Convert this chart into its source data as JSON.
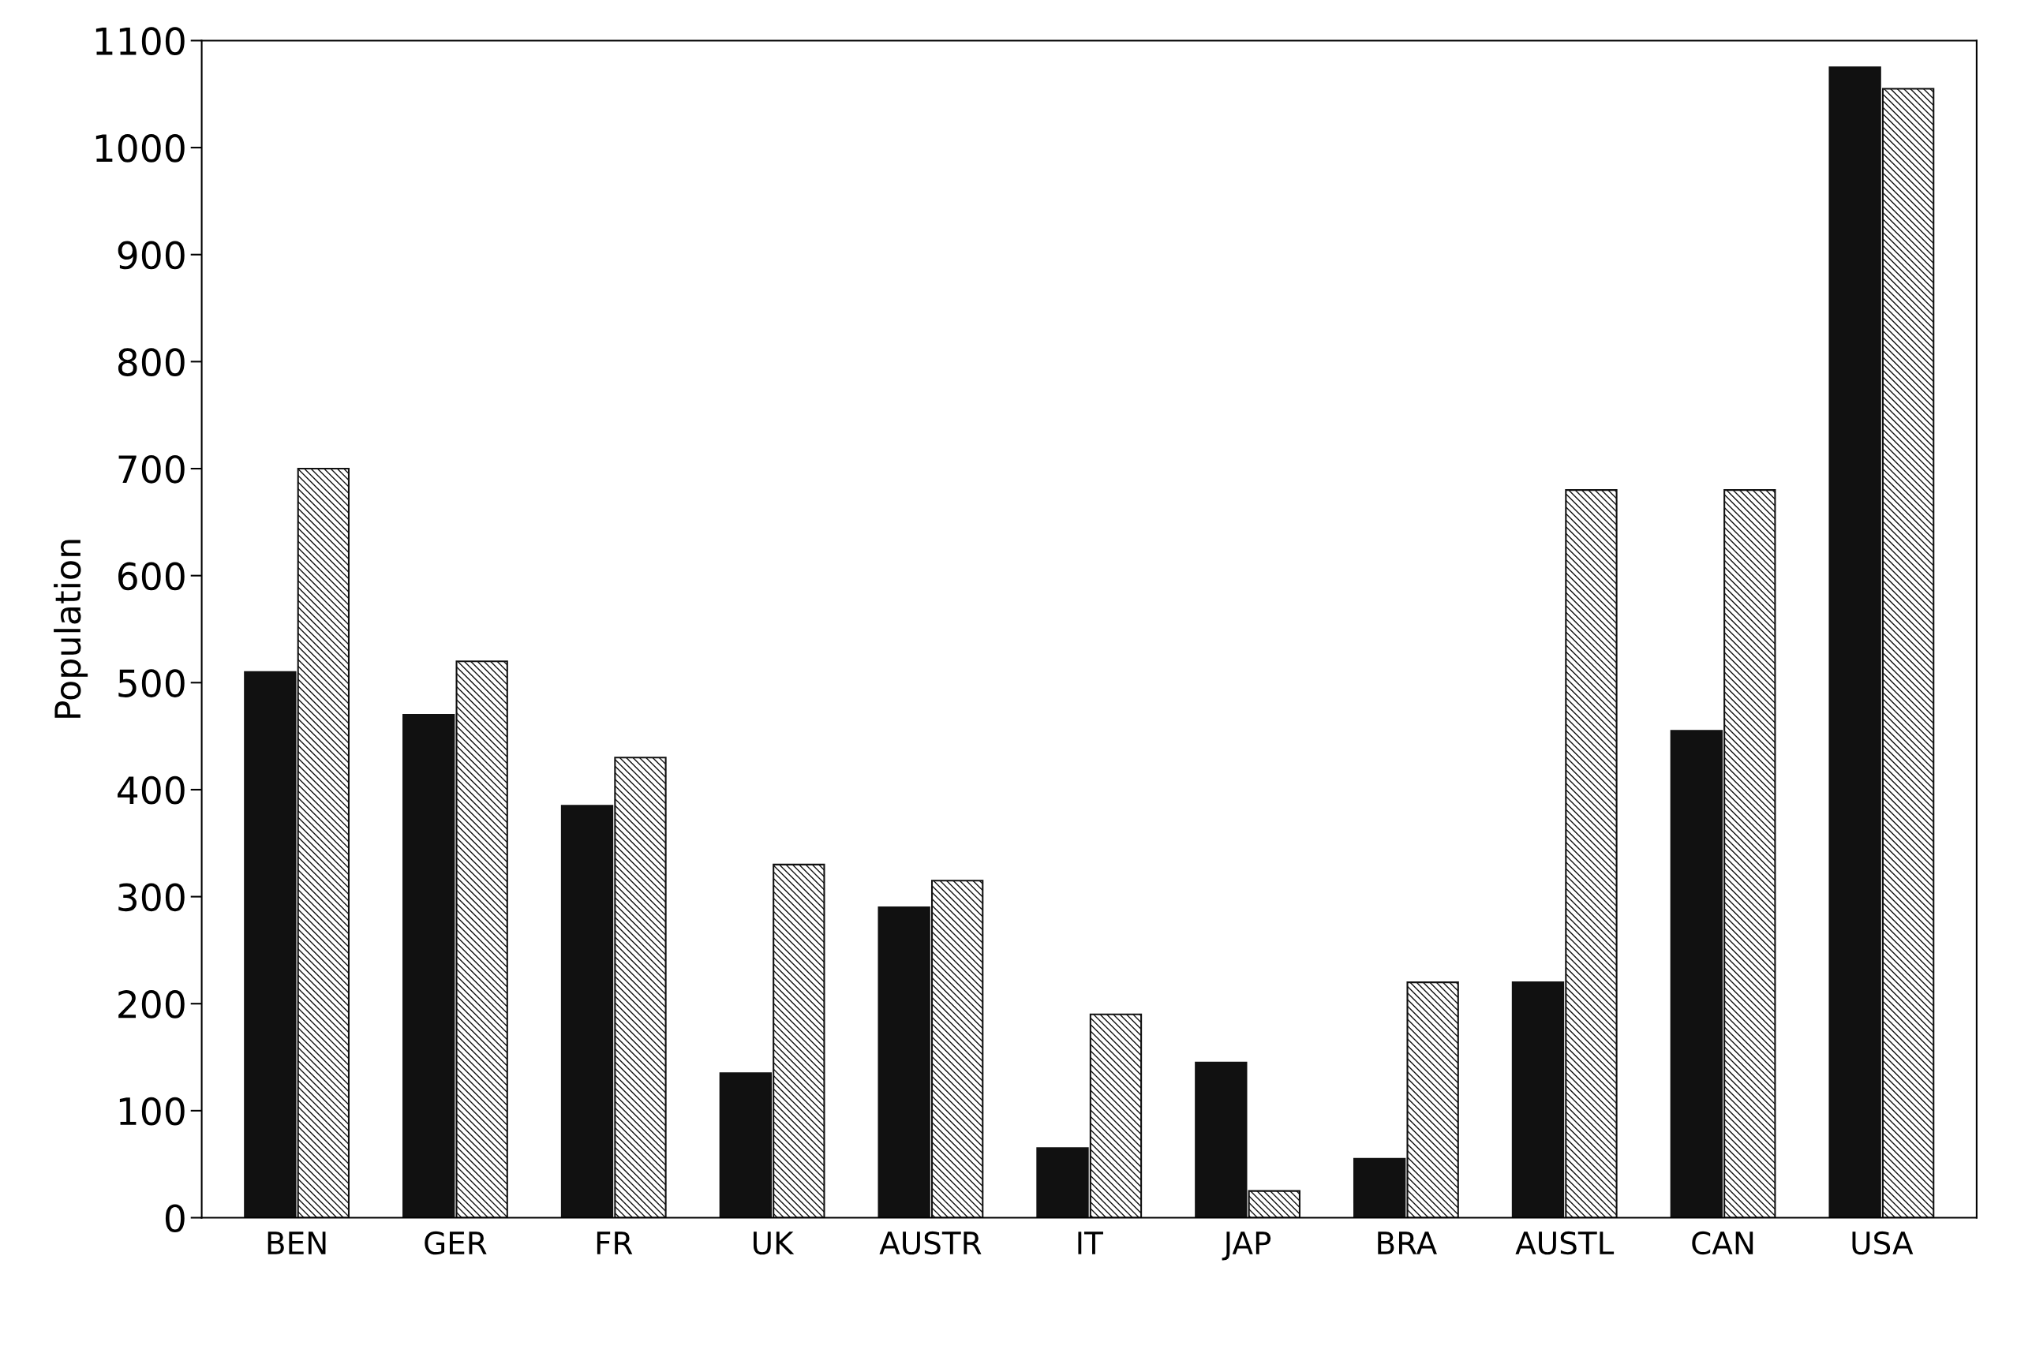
{
  "chart_data": {
    "type": "bar",
    "ylabel": "Population",
    "categories": [
      "BEN",
      "GER",
      "FR",
      "UK",
      "AUSTR",
      "IT",
      "JAP",
      "BRA",
      "AUSTL",
      "CAN",
      "USA"
    ],
    "series": [
      {
        "color": "#111111",
        "values": [
          510,
          470,
          385,
          135,
          290,
          65,
          145,
          55,
          220,
          455,
          1075
        ]
      },
      {
        "color": "#111111",
        "values": [
          700,
          520,
          430,
          330,
          315,
          190,
          25,
          220,
          680,
          680,
          1055
        ]
      }
    ],
    "ylim": [
      0,
      1100
    ],
    "yticks": [
      0,
      100,
      200,
      300,
      400,
      500,
      600,
      700,
      800,
      900,
      1000,
      1100
    ],
    "grid": false,
    "legend": false
  }
}
